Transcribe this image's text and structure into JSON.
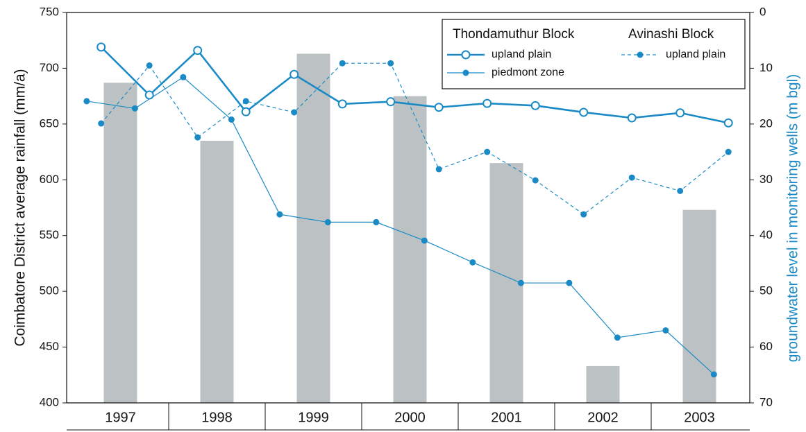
{
  "chart_data": {
    "type": "combo",
    "y_label": "Coimbatore District average rainfall (mm/a)",
    "y2_label": "groundwater level in monitoring wells (m bgl)",
    "categories": [
      "1997",
      "1998",
      "1999",
      "2000",
      "2001",
      "2002",
      "2003"
    ],
    "xlim": [
      1997,
      2004
    ],
    "ylim": [
      400,
      750
    ],
    "yticks": [
      400,
      450,
      500,
      550,
      600,
      650,
      700,
      750
    ],
    "y2lim": [
      70,
      0
    ],
    "y2ticks": [
      0,
      10,
      20,
      30,
      40,
      50,
      60,
      70
    ],
    "bars": {
      "color": "#bcc2c3",
      "values": [
        687,
        635,
        713,
        675,
        615,
        433,
        573
      ]
    },
    "groups": [
      {
        "name": "Thondamuthur Block",
        "series": [
          {
            "name": "upland plain",
            "color": "#1a8ac6",
            "style": "solid",
            "marker": "open",
            "axis": "y2",
            "x": [
              1997.3,
              1997.8,
              1998.3,
              1998.8,
              1999.3,
              1999.8,
              2000.3,
              2000.8,
              2001.3,
              2001.8,
              2002.3,
              2002.8,
              2003.3,
              2003.8
            ],
            "values": [
              6.2,
              14.8,
              6.8,
              17.8,
              11.1,
              16.4,
              16.0,
              17.0,
              16.3,
              16.7,
              17.9,
              18.9,
              18.0,
              19.8
            ]
          },
          {
            "name": "piedmont zone",
            "color": "#1a8ac6",
            "style": "thin",
            "marker": "filled",
            "axis": "y2",
            "x": [
              1997.15,
              1997.65,
              1998.15,
              1998.65,
              1999.15,
              1999.65,
              2000.15,
              2000.65,
              2001.15,
              2001.65,
              2002.15,
              2002.65,
              2003.15,
              2003.65
            ],
            "values": [
              15.9,
              17.2,
              11.6,
              19.2,
              36.2,
              37.6,
              37.6,
              40.9,
              44.8,
              48.5,
              48.5,
              58.3,
              57.0,
              64.9
            ]
          }
        ]
      },
      {
        "name": "Avinashi Block",
        "series": [
          {
            "name": "upland plain",
            "color": "#1a8ac6",
            "style": "dashed",
            "marker": "filled",
            "axis": "y2",
            "x": [
              1997.3,
              1997.8,
              1998.3,
              1998.8,
              1999.3,
              1999.8,
              2000.3,
              2000.8,
              2001.3,
              2001.8,
              2002.3,
              2002.8,
              2003.3,
              2003.8
            ],
            "values": [
              19.9,
              9.5,
              22.4,
              15.9,
              17.9,
              9.1,
              9.1,
              28.1,
              25.0,
              30.1,
              36.2,
              29.6,
              32.0,
              25.0
            ]
          }
        ]
      }
    ]
  }
}
